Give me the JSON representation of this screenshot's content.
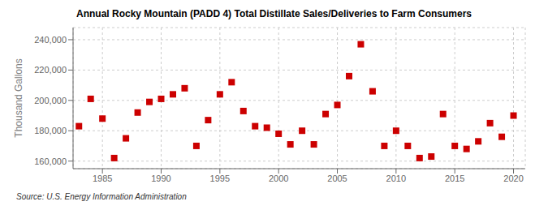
{
  "chart_data": {
    "type": "scatter",
    "title": "Annual Rocky Mountain (PADD 4) Total Distillate Sales/Deliveries to Farm Consumers",
    "y_label": "Thousand Gallons",
    "annotations": [
      "Source: U.S. Energy Information Administration"
    ],
    "x": [
      1983,
      1984,
      1985,
      1986,
      1987,
      1988,
      1989,
      1990,
      1991,
      1992,
      1993,
      1994,
      1995,
      1996,
      1997,
      1998,
      1999,
      2000,
      2001,
      2002,
      2003,
      2004,
      2005,
      2006,
      2007,
      2008,
      2009,
      2010,
      2011,
      2012,
      2013,
      2014,
      2015,
      2016,
      2017,
      2018,
      2019,
      2020
    ],
    "values": [
      183000,
      201000,
      188000,
      162000,
      175000,
      192000,
      199000,
      201000,
      204000,
      208000,
      170000,
      187000,
      204000,
      212000,
      193000,
      183000,
      182000,
      178000,
      171000,
      180000,
      171000,
      191000,
      197000,
      216000,
      237000,
      206000,
      170000,
      180000,
      170000,
      162000,
      163000,
      191000,
      170000,
      168000,
      173000,
      185000,
      176000,
      190000
    ],
    "color": "#cc0000",
    "marker": "square",
    "grid": true,
    "xlim": [
      1982.5,
      2021
    ],
    "xticks": [
      1985,
      1990,
      1995,
      2000,
      2005,
      2010,
      2015,
      2020
    ],
    "ylim": [
      155000,
      248000
    ],
    "yticks": [
      {
        "value": 160000,
        "label": "160,000"
      },
      {
        "value": 180000,
        "label": "180,000"
      },
      {
        "value": 200000,
        "label": "200,000"
      },
      {
        "value": 220000,
        "label": "220,000"
      },
      {
        "value": 240000,
        "label": "240,000"
      }
    ]
  }
}
